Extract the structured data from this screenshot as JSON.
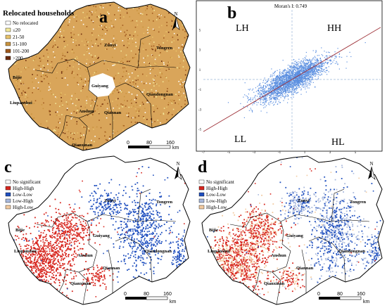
{
  "panel_labels": {
    "a": "a",
    "b": "b",
    "c": "c",
    "d": "d"
  },
  "colors": {
    "boundary": "#000000",
    "no_relocated": "#ffffff",
    "le20": "#f3ea9c",
    "r21_50": "#e8c36b",
    "r51_100": "#c9933f",
    "r101_200": "#a05a1e",
    "gt200": "#6b2a0c",
    "high_high": "#d7261e",
    "low_low": "#1f4fbf",
    "low_high": "#a9b9dc",
    "high_low": "#f2caa0",
    "scatter": "#5b8fe0",
    "fit_line": "#a0353c"
  },
  "map_a": {
    "legend_title": "Relocated households",
    "legend": [
      "No relocated",
      "≤20",
      "21-50",
      "51-100",
      "101-200",
      ">200"
    ],
    "north": "N",
    "scale": {
      "ticks": [
        "0",
        "80",
        "160"
      ],
      "unit": "km"
    }
  },
  "map_c": {
    "legend": [
      "No significant",
      "High-High",
      "Low-Low",
      "Low-High",
      "High-Low"
    ],
    "north": "N",
    "scale": {
      "ticks": [
        "0",
        "80",
        "160"
      ],
      "unit": "km"
    }
  },
  "map_d": {
    "legend": [
      "No significant",
      "High-High",
      "Low-Low",
      "Low-High",
      "High-Low"
    ],
    "north": "N",
    "scale": {
      "ticks": [
        "0",
        "80",
        "160"
      ],
      "unit": "km"
    }
  },
  "cities": [
    "Zunyi",
    "Tongren",
    "Bijie",
    "Guiyang",
    "Liupanshui",
    "Anshun",
    "Qiandongnan",
    "Qiannan",
    "Qianxinan"
  ],
  "chart_data": {
    "type": "scatter",
    "title": "Moran's I: 0.749",
    "quadrants": [
      "LH",
      "HH",
      "LL",
      "HL"
    ],
    "xlim": [
      -7,
      7
    ],
    "ylim": [
      -7,
      7
    ],
    "x_ticks": [
      "-7",
      "-5",
      "-3",
      "-1",
      "1",
      "3",
      "5"
    ],
    "y_ticks": [
      "5",
      "3",
      "1",
      "-1",
      "-3",
      "-5"
    ],
    "slope": 0.749,
    "cloud": {
      "center": [
        0,
        0
      ],
      "major_axis_sd": 1.6,
      "minor_axis_sd": 0.55
    }
  }
}
